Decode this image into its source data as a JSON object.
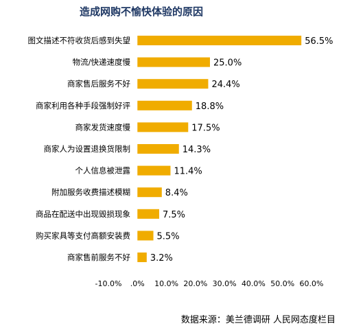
{
  "chart_data": {
    "type": "bar",
    "orientation": "horizontal",
    "title": "造成网购不愉快体验的原因",
    "categories": [
      "图文描述不符收货后感到失望",
      "物流/快递速度慢",
      "商家售后服务不好",
      "商家利用各种手段强制好评",
      "商家发货速度慢",
      "商家人为设置退换货限制",
      "个人信息被泄露",
      "附加服务收费描述模糊",
      "商品在配送中出现毁损现象",
      "购买家具等支付高额安装费",
      "商家售前服务不好"
    ],
    "values": [
      56.5,
      25.0,
      24.4,
      18.8,
      17.5,
      14.3,
      11.4,
      8.4,
      7.5,
      5.5,
      3.2
    ],
    "value_labels": [
      "56.5%",
      "25.0%",
      "24.4%",
      "18.8%",
      "17.5%",
      "14.3%",
      "11.4%",
      "8.4%",
      "7.5%",
      "5.5%",
      "3.2%"
    ],
    "xlim": [
      -10,
      60
    ],
    "xticks": [
      -10,
      0,
      10,
      20,
      30,
      40,
      50,
      60
    ],
    "xtick_labels": [
      "-10.0%",
      ".0%",
      "10.0%",
      "20.0%",
      "30.0%",
      "40.0%",
      "50.0%",
      "60.0%"
    ],
    "bar_color": "#f0ac00",
    "title_color": "#1f3864",
    "grid": false,
    "legend": "none",
    "source": "数据来源：美兰德调研  人民网态度栏目"
  }
}
